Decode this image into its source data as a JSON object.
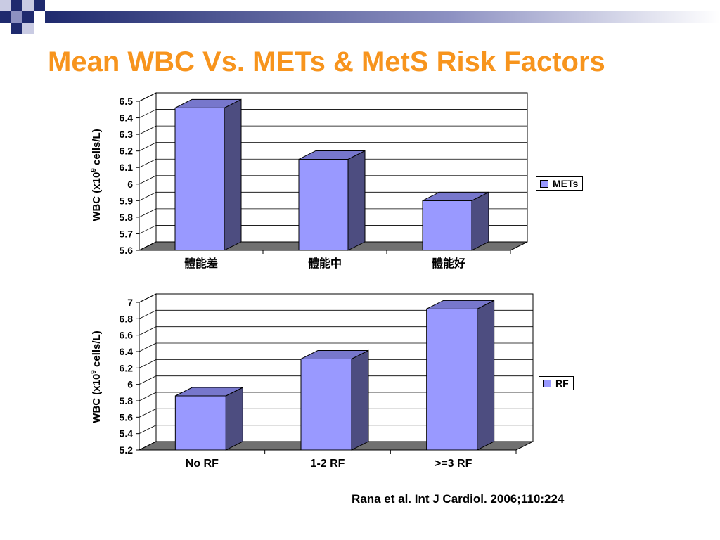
{
  "slide": {
    "title": "Mean WBC Vs. METs & MetS Risk Factors",
    "citation": "Rana et al. Int J Cardiol. 2006;110:224",
    "title_color": "#f7941d",
    "accent_colors": [
      "#1f2a6e",
      "#8d91c2",
      "#c9cbe3"
    ]
  },
  "chart_data": [
    {
      "type": "bar",
      "categories": [
        "體能差",
        "體能中",
        "體能好"
      ],
      "series": [
        {
          "name": "METs",
          "values": [
            6.46,
            6.15,
            5.9
          ]
        }
      ],
      "ylabel_main": "WBC (x10",
      "ylabel_sup": "9",
      "ylabel_tail": " cells/L)",
      "ylim": [
        5.6,
        6.5
      ],
      "ticks": [
        "5.6",
        "5.7",
        "5.8",
        "5.9",
        "6",
        "6.1",
        "6.2",
        "6.3",
        "6.4",
        "6.5"
      ],
      "grid": true,
      "legend": "right",
      "bar_color": "#9999ff",
      "bar_side_color": "#4d4d80",
      "bar_top_color": "#7777cc",
      "floor_color": "#707070"
    },
    {
      "type": "bar",
      "categories": [
        "No RF",
        "1-2 RF",
        ">=3 RF"
      ],
      "series": [
        {
          "name": "RF",
          "values": [
            5.86,
            6.31,
            6.92
          ]
        }
      ],
      "ylabel_main": "WBC (x10",
      "ylabel_sup": "9",
      "ylabel_tail": " cells/L)",
      "ylim": [
        5.2,
        7
      ],
      "ticks": [
        "5.2",
        "5.4",
        "5.6",
        "5.8",
        "6",
        "6.2",
        "6.4",
        "6.6",
        "6.8",
        "7"
      ],
      "grid": true,
      "legend": "right",
      "bar_color": "#9999ff",
      "bar_side_color": "#4d4d80",
      "bar_top_color": "#7777cc",
      "floor_color": "#707070"
    }
  ]
}
